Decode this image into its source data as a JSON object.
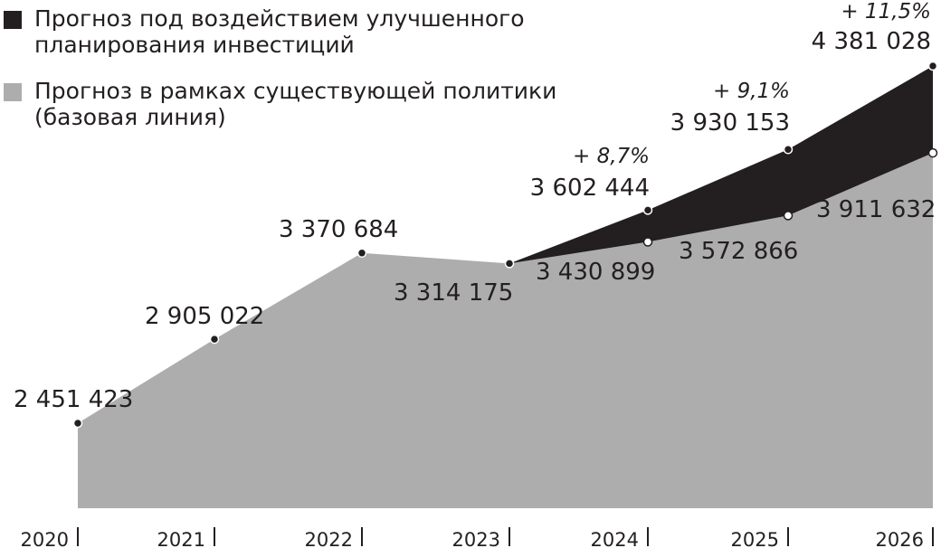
{
  "chart_data": {
    "type": "area",
    "title": "",
    "xlabel": "",
    "ylabel": "",
    "x": [
      "2020",
      "2021",
      "2022",
      "2023",
      "2024",
      "2025",
      "2026"
    ],
    "ylim": [
      1900000,
      4500000
    ],
    "series": [
      {
        "name": "Прогноз под воздействием улучшенного планирования инвестиций",
        "color": "#231f20",
        "values": [
          null,
          null,
          null,
          3314175,
          3602444,
          3930153,
          4381028
        ],
        "labels": [
          null,
          null,
          null,
          null,
          "3 602 444",
          "3 930 153",
          "4 381 028"
        ],
        "growth_labels": [
          null,
          null,
          null,
          null,
          "+ 8,7%",
          "+ 9,1%",
          "+ 11,5%"
        ]
      },
      {
        "name": "Прогноз в рамках существующей политики (базовая линия)",
        "color": "#aeadad",
        "values": [
          2451423,
          2905022,
          3370684,
          3314175,
          3430899,
          3572866,
          3911632
        ],
        "labels": [
          "2 451 423",
          "2 905 022",
          "3 370 684",
          "3 314 175",
          "3 430 899",
          "3 572 866",
          "3 911 632"
        ]
      }
    ],
    "legend_position": "top-left",
    "grid": false
  }
}
